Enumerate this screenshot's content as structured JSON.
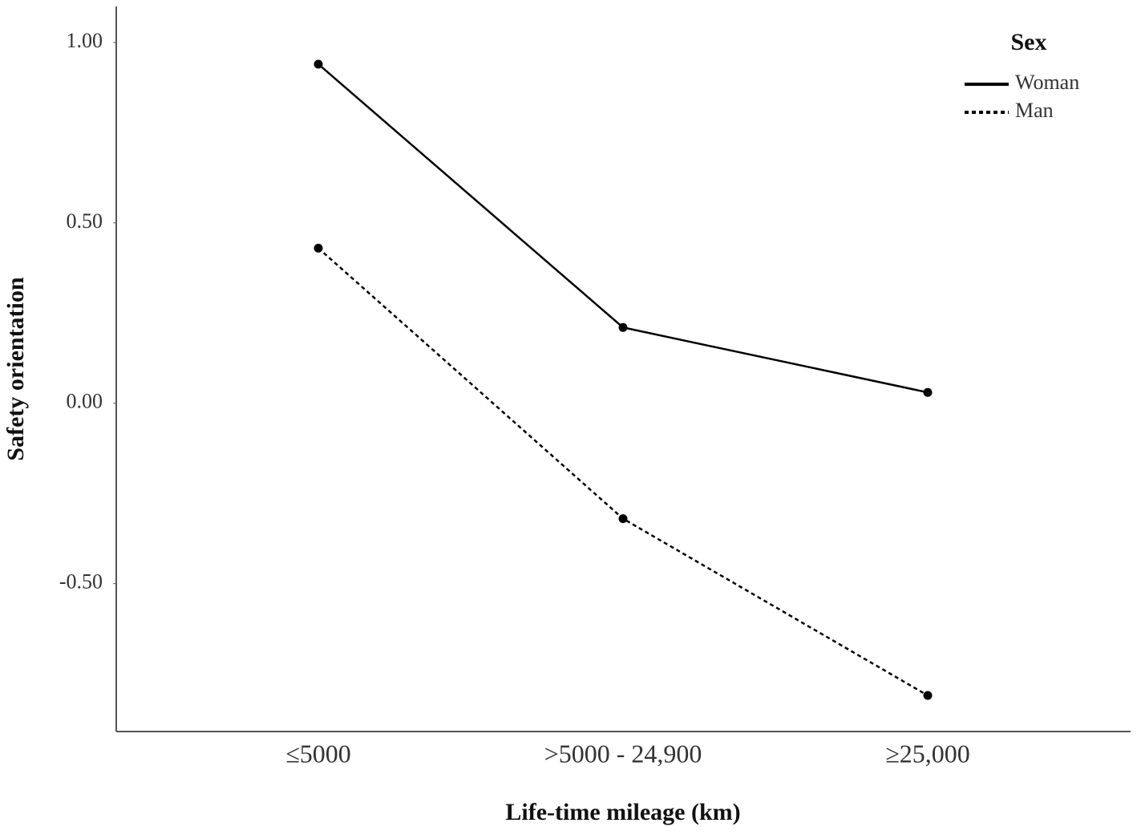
{
  "chart_data": {
    "type": "line",
    "xlabel": "Life-time mileage (km)",
    "ylabel": "Safety orientation",
    "categories": [
      "≤5000",
      ">5000 - 24,900",
      "≥25,000"
    ],
    "series": [
      {
        "name": "Woman",
        "color": "#000000",
        "linestyle": "solid",
        "values": [
          0.94,
          0.21,
          0.03
        ]
      },
      {
        "name": "Man",
        "color": "#000000",
        "linestyle": "dotted",
        "values": [
          0.43,
          -0.32,
          -0.81
        ]
      }
    ],
    "ylim": [
      -0.91,
      1.1
    ],
    "yticks": [
      {
        "value": -0.5,
        "label": "-0.50"
      },
      {
        "value": 0,
        "label": "0.00"
      },
      {
        "value": 0.5,
        "label": "0.50"
      },
      {
        "value": 1,
        "label": "1.00"
      }
    ],
    "grid": false,
    "legend": {
      "title": "Sex",
      "loc": "upper right"
    }
  }
}
